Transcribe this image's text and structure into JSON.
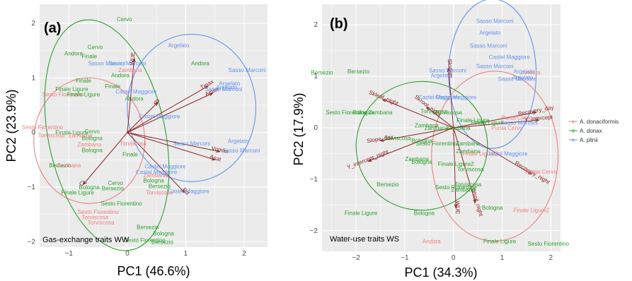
{
  "colors": {
    "A. donaciformis": "#f08080",
    "A. donax": "#2ca02c",
    "A. plinii": "#6495ed",
    "loading": "#8b2323",
    "panel_bg": "#ebebeb",
    "grid": "#ffffff"
  },
  "legend": [
    "A. donaciformis",
    "A. donax",
    "A. plinii"
  ],
  "chart_data": [
    {
      "type": "scatter",
      "panel": "(a)",
      "note": "Gas-exchange traits WW",
      "xlabel": "PC1 (46.6%)",
      "ylabel": "PC2 (23.9%)",
      "xlim": [
        -1.5,
        2.4
      ],
      "ylim": [
        -2.1,
        2.35
      ],
      "xticks": [
        -1,
        0,
        1,
        2
      ],
      "yticks": [
        -2,
        -1,
        0,
        1,
        2
      ],
      "grid": true,
      "legend_position": "right",
      "points": [
        {
          "label": "Cervo",
          "x": -0.05,
          "y": 2.08,
          "g": "A. donax"
        },
        {
          "label": "Argelato",
          "x": 0.88,
          "y": 1.6,
          "g": "A. plinii"
        },
        {
          "label": "Andora",
          "x": -0.92,
          "y": 1.45,
          "g": "A. donax"
        },
        {
          "label": "Cervo",
          "x": -0.55,
          "y": 1.57,
          "g": "A. donax"
        },
        {
          "label": "Finale",
          "x": -0.65,
          "y": 1.4,
          "g": "A. donax"
        },
        {
          "label": "Andora",
          "x": 1.25,
          "y": 1.27,
          "g": "A. donax"
        },
        {
          "label": "Sasso Marconi",
          "x": -0.35,
          "y": 1.27,
          "g": "A. plinii"
        },
        {
          "label": "Sasso Marconi",
          "x": 0.0,
          "y": 1.27,
          "g": "A. plinii"
        },
        {
          "label": "Zambana",
          "x": 0.05,
          "y": 1.15,
          "g": "A. donaciformis"
        },
        {
          "label": "Andora",
          "x": -0.12,
          "y": 1.05,
          "g": "A. donax"
        },
        {
          "label": "Sasso Marconi",
          "x": 2.05,
          "y": 1.15,
          "g": "A. plinii"
        },
        {
          "label": "Finale",
          "x": -0.75,
          "y": 0.95,
          "g": "A. donax"
        },
        {
          "label": "Finale",
          "x": -0.25,
          "y": 0.85,
          "g": "A. donax"
        },
        {
          "label": "Argelato",
          "x": 1.75,
          "y": 0.9,
          "g": "A. plinii"
        },
        {
          "label": "Sasso Marconi",
          "x": 1.65,
          "y": 0.8,
          "g": "A. plinii"
        },
        {
          "label": "Argelato",
          "x": 1.7,
          "y": 0.83,
          "g": "A. plinii"
        },
        {
          "label": "Finale Ligure",
          "x": -0.95,
          "y": 0.8,
          "g": "A. donax"
        },
        {
          "label": "Castel Maggiore",
          "x": 0.15,
          "y": 0.75,
          "g": "A. plinii"
        },
        {
          "label": "Sesto Fiorentino",
          "x": -1.1,
          "y": 0.7,
          "g": "A. donaciformis"
        },
        {
          "label": "Finale Ligure",
          "x": -0.75,
          "y": 0.7,
          "g": "A. donax"
        },
        {
          "label": "Andora",
          "x": 0.12,
          "y": 0.62,
          "g": "A. donax"
        },
        {
          "label": "Castel Maggiore",
          "x": 0.55,
          "y": 0.3,
          "g": "A. plinii"
        },
        {
          "label": "Sesto Fiorentino",
          "x": -1.45,
          "y": 0.1,
          "g": "A. donaciformis"
        },
        {
          "label": "Finale Ligure",
          "x": -0.95,
          "y": 0.0,
          "g": "A. donax"
        },
        {
          "label": "Cervo",
          "x": -0.6,
          "y": 0.02,
          "g": "A. donax"
        },
        {
          "label": "Torviscosa",
          "x": -1.3,
          "y": -0.05,
          "g": "A. donaciformis"
        },
        {
          "label": "Zambana",
          "x": -0.8,
          "y": -0.05,
          "g": "A. donaciformis"
        },
        {
          "label": "Bologna",
          "x": -0.6,
          "y": -0.1,
          "g": "A. donax"
        },
        {
          "label": "Zambana",
          "x": -0.65,
          "y": -0.22,
          "g": "A. donaciformis"
        },
        {
          "label": "Bologna",
          "x": -0.6,
          "y": -0.32,
          "g": "A. donax"
        },
        {
          "label": "Torviscosa",
          "x": 0.1,
          "y": -0.2,
          "g": "A. donaciformis"
        },
        {
          "label": "Sasso Marconi",
          "x": 1.1,
          "y": -0.2,
          "g": "A. plinii"
        },
        {
          "label": "Argelato",
          "x": 1.9,
          "y": -0.15,
          "g": "A. plinii"
        },
        {
          "label": "Finale",
          "x": 0.05,
          "y": -0.4,
          "g": "A. donax"
        },
        {
          "label": "Sasso Marconi",
          "x": 1.95,
          "y": -0.33,
          "g": "A. plinii"
        },
        {
          "label": "Bersezio",
          "x": -1.15,
          "y": -0.6,
          "g": "A. donax"
        },
        {
          "label": "Zambana",
          "x": -1.0,
          "y": -0.6,
          "g": "A. donaciformis"
        },
        {
          "label": "Castel Maggiore",
          "x": 0.65,
          "y": -0.62,
          "g": "A. plinii"
        },
        {
          "label": "Castel Maggiore",
          "x": 0.5,
          "y": -0.72,
          "g": "A. plinii"
        },
        {
          "label": "Zambana",
          "x": 0.48,
          "y": -0.78,
          "g": "A. donaciformis"
        },
        {
          "label": "Bologna",
          "x": 0.45,
          "y": -0.88,
          "g": "A. donax"
        },
        {
          "label": "Bersezio",
          "x": 0.55,
          "y": -0.98,
          "g": "A. donax"
        },
        {
          "label": "Cervo",
          "x": -0.2,
          "y": -0.92,
          "g": "A. donax"
        },
        {
          "label": "Bersezio",
          "x": -0.25,
          "y": -1.02,
          "g": "A. donax"
        },
        {
          "label": "Torviscosa",
          "x": 0.55,
          "y": -1.1,
          "g": "A. donaciformis"
        },
        {
          "label": "Castel Maggiore",
          "x": 1.05,
          "y": -1.07,
          "g": "A. plinii"
        },
        {
          "label": "Bologna",
          "x": -0.65,
          "y": -1.0,
          "g": "A. donax"
        },
        {
          "label": "Finale Ligure",
          "x": -0.85,
          "y": -1.1,
          "g": "A. donax"
        },
        {
          "label": "Sesto Fiorentino",
          "x": -0.1,
          "y": -1.3,
          "g": "A. donax"
        },
        {
          "label": "Sesto Fiorentino",
          "x": -0.5,
          "y": -1.45,
          "g": "A. donaciformis"
        },
        {
          "label": "Torviscosa",
          "x": -0.55,
          "y": -1.55,
          "g": "A. donaciformis"
        },
        {
          "label": "Torviscosa",
          "x": -0.45,
          "y": -1.65,
          "g": "A. donaciformis"
        },
        {
          "label": "Bersezio",
          "x": 0.35,
          "y": -1.73,
          "g": "A. donax"
        },
        {
          "label": "Bologna",
          "x": 0.62,
          "y": -1.85,
          "g": "A. donax"
        },
        {
          "label": "Sesto Fiorentino",
          "x": 0.3,
          "y": -1.97,
          "g": "A. donax"
        },
        {
          "label": "Bersezio",
          "x": 0.6,
          "y": -2.0,
          "g": "A. donax"
        }
      ],
      "loadings": [
        {
          "label": "WUE",
          "x": 0.12,
          "y": 1.35
        },
        {
          "label": "gs",
          "x": 0.52,
          "y": 0.55
        },
        {
          "label": "Tmax",
          "x": 1.38,
          "y": 0.85
        },
        {
          "label": "Amax",
          "x": 1.46,
          "y": 0.72
        },
        {
          "label": "Vcmax",
          "x": 1.58,
          "y": -0.35
        },
        {
          "label": "Asat",
          "x": 1.5,
          "y": -0.5
        },
        {
          "label": "Rd",
          "x": 0.98,
          "y": -1.1
        },
        {
          "label": "Ci",
          "x": -0.75,
          "y": -0.95
        }
      ],
      "ellipses": [
        {
          "g": "A. donaciformis",
          "cx": -0.65,
          "cy": -0.15,
          "rx": 0.95,
          "ry": 1.15,
          "rot": 0
        },
        {
          "g": "A. donax",
          "cx": -0.35,
          "cy": -0.05,
          "rx": 1.0,
          "ry": 2.15,
          "rot": -12
        },
        {
          "g": "A. plinii",
          "cx": 1.1,
          "cy": 0.45,
          "rx": 1.1,
          "ry": 1.35,
          "rot": 0
        }
      ]
    },
    {
      "type": "scatter",
      "panel": "(b)",
      "note": "Water-use traits WS",
      "xlabel": "PC1 (34.3%)",
      "ylabel": "PC2 (17.9%)",
      "xlim": [
        -2.7,
        2.2
      ],
      "ylim": [
        -2.4,
        2.4
      ],
      "xticks": [
        -2,
        -1,
        0,
        1,
        2
      ],
      "yticks": [
        -2,
        -1,
        0,
        1,
        2
      ],
      "grid": true,
      "legend_position": "right",
      "points": [
        {
          "label": "Sasso Marconi",
          "x": 0.85,
          "y": 2.08,
          "g": "A. plinii"
        },
        {
          "label": "Argelato",
          "x": 0.75,
          "y": 1.85,
          "g": "A. plinii"
        },
        {
          "label": "Sasso Marconi",
          "x": 0.72,
          "y": 1.6,
          "g": "A. plinii"
        },
        {
          "label": "Castel Maggiore",
          "x": 1.15,
          "y": 1.38,
          "g": "A. plinii"
        },
        {
          "label": "Sasso Marconi",
          "x": 0.85,
          "y": 1.2,
          "g": "A. plinii"
        },
        {
          "label": "Argelato",
          "x": 1.45,
          "y": 1.1,
          "g": "A. plinii"
        },
        {
          "label": "Sasso Marconi",
          "x": 1.3,
          "y": 0.95,
          "g": "A. plinii"
        },
        {
          "label": "Bersezio",
          "x": -2.7,
          "y": 1.08,
          "g": "A. donax"
        },
        {
          "label": "Bersezio",
          "x": -1.95,
          "y": 1.1,
          "g": "A. donax"
        },
        {
          "label": "Sasso Marconi",
          "x": -0.12,
          "y": 1.12,
          "g": "A. plinii"
        },
        {
          "label": "Argelato",
          "x": -0.25,
          "y": 1.02,
          "g": "A. plinii"
        },
        {
          "label": "Andora",
          "x": 1.6,
          "y": 1.08,
          "g": "A. donaciformis"
        },
        {
          "label": "Argelato",
          "x": 1.42,
          "y": 0.98,
          "g": "A. plinii"
        },
        {
          "label": "Castel Maggiore",
          "x": -0.3,
          "y": 0.6,
          "g": "A. plinii"
        },
        {
          "label": "Castel Maggiore",
          "x": 0.05,
          "y": 0.6,
          "g": "A. plinii"
        },
        {
          "label": "Sesto Fiorentino",
          "x": -2.2,
          "y": 0.3,
          "g": "A. donax"
        },
        {
          "label": "Bologna",
          "x": -1.85,
          "y": 0.3,
          "g": "A. donax"
        },
        {
          "label": "Zambana",
          "x": -1.5,
          "y": 0.3,
          "g": "A. donax"
        },
        {
          "label": "Torviscosa",
          "x": -0.4,
          "y": 0.32,
          "g": "A. donax"
        },
        {
          "label": "Torviscosa",
          "x": -0.1,
          "y": 0.3,
          "g": "A. donax"
        },
        {
          "label": "Zambana",
          "x": -0.55,
          "y": 0.05,
          "g": "A. donax"
        },
        {
          "label": "Zambana",
          "x": -0.35,
          "y": 0.0,
          "g": "A. donax"
        },
        {
          "label": "Zambana",
          "x": 0.1,
          "y": 0.0,
          "g": "A. donax"
        },
        {
          "label": "Finale Ligure",
          "x": 0.7,
          "y": 0.1,
          "g": "A. donax"
        },
        {
          "label": "Finale Ligure",
          "x": 0.4,
          "y": 0.15,
          "g": "A. donax"
        },
        {
          "label": "Punta Cervo",
          "x": 1.3,
          "y": 0.2,
          "g": "A. donaciformis"
        },
        {
          "label": "Sasso Marconi",
          "x": 1.35,
          "y": 0.1,
          "g": "A. plinii"
        },
        {
          "label": "Punta Cervo",
          "x": 1.1,
          "y": 0.0,
          "g": "A. donaciformis"
        },
        {
          "label": "Torviscosa",
          "x": -1.15,
          "y": -0.2,
          "g": "A. donax"
        },
        {
          "label": "Bologna",
          "x": -0.65,
          "y": -0.25,
          "g": "A. donax"
        },
        {
          "label": "Sesto Fiorentino",
          "x": -0.35,
          "y": -0.3,
          "g": "A. donax"
        },
        {
          "label": "Zambana",
          "x": 0.3,
          "y": -0.3,
          "g": "A. donax"
        },
        {
          "label": "Zambana",
          "x": 0.3,
          "y": -0.45,
          "g": "A. donax"
        },
        {
          "label": "Zambana",
          "x": -0.75,
          "y": -0.6,
          "g": "A. donax"
        },
        {
          "label": "Bologna",
          "x": -0.65,
          "y": -0.66,
          "g": "A. donax"
        },
        {
          "label": "Finale Ligure2",
          "x": 0.55,
          "y": -0.5,
          "g": "A. donaciformis"
        },
        {
          "label": "Castel Maggiore",
          "x": 1.1,
          "y": -0.5,
          "g": "A. plinii"
        },
        {
          "label": "Finale Ligure2",
          "x": 0.05,
          "y": -0.7,
          "g": "A. donax"
        },
        {
          "label": "Torviscosa",
          "x": 0.35,
          "y": -0.8,
          "g": "A. donax"
        },
        {
          "label": "Punta Cervo",
          "x": 1.8,
          "y": -0.85,
          "g": "A. donaciformis"
        },
        {
          "label": "Bersezio",
          "x": -1.35,
          "y": -1.1,
          "g": "A. donax"
        },
        {
          "label": "Sesto Fiorentino",
          "x": 0.05,
          "y": -1.15,
          "g": "A. donax"
        },
        {
          "label": "Torviscosa",
          "x": 0.3,
          "y": -1.1,
          "g": "A. donax"
        },
        {
          "label": "Zambana",
          "x": 0.2,
          "y": -1.2,
          "g": "A. donax"
        },
        {
          "label": "Bologna",
          "x": 0.8,
          "y": -1.55,
          "g": "A. donax"
        },
        {
          "label": "Finale Ligure2",
          "x": 1.6,
          "y": -1.6,
          "g": "A. donaciformis"
        },
        {
          "label": "Finale Ligure",
          "x": -1.9,
          "y": -1.65,
          "g": "A. donax"
        },
        {
          "label": "Bologna",
          "x": -0.6,
          "y": -1.65,
          "g": "A. donax"
        },
        {
          "label": "Andora",
          "x": -0.45,
          "y": -2.2,
          "g": "A. donaciformis"
        },
        {
          "label": "Finale Ligure",
          "x": 0.95,
          "y": -2.2,
          "g": "A. donax"
        },
        {
          "label": "Sesto Fiorentino",
          "x": 1.95,
          "y": -2.25,
          "g": "A. donax"
        }
      ],
      "loadings": [
        {
          "label": "Skstem",
          "x": -0.1,
          "y": 1.15
        },
        {
          "label": "Skleaf_night",
          "x": -1.45,
          "y": 0.55
        },
        {
          "label": "Skroot_night",
          "x": -0.55,
          "y": 0.4
        },
        {
          "label": "Slope_day",
          "x": -1.5,
          "y": -0.25
        },
        {
          "label": "Y_intercept_night",
          "x": -1.75,
          "y": -0.65
        },
        {
          "label": "Recovery_night",
          "x": 1.6,
          "y": -0.9
        },
        {
          "label": "Recovery_day",
          "x": 1.7,
          "y": 0.3
        },
        {
          "label": "Y_intercept",
          "x": 1.75,
          "y": 0.15
        },
        {
          "label": "WUE",
          "x": 0.05,
          "y": -1.55
        },
        {
          "label": "Wsoil_night",
          "x": 0.45,
          "y": -1.45
        }
      ],
      "ellipses": [
        {
          "g": "A. donaciformis",
          "cx": 0.85,
          "cy": -0.55,
          "rx": 1.3,
          "ry": 1.65,
          "rot": 0
        },
        {
          "g": "A. donax",
          "cx": -0.65,
          "cy": -0.35,
          "rx": 1.35,
          "ry": 1.25,
          "rot": -10
        },
        {
          "g": "A. plinii",
          "cx": 0.8,
          "cy": 1.05,
          "rx": 0.9,
          "ry": 1.45,
          "rot": 0
        }
      ]
    }
  ]
}
